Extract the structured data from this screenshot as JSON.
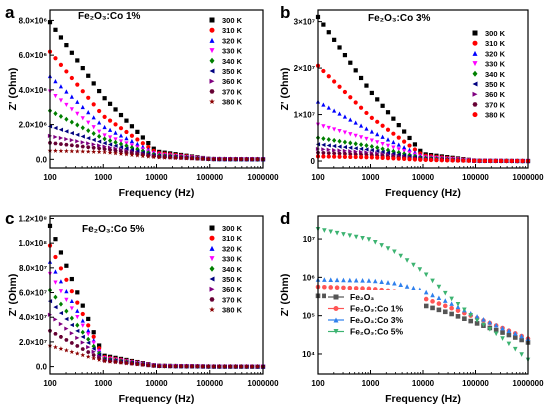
{
  "chart_data": [
    {
      "panel": "a",
      "type": "scatter",
      "title": "Fe₂O₃:Co 1%",
      "xlabel": "Frequency (Hz)",
      "ylabel": "Z' (Ohm)",
      "xscale": "log",
      "xlim": [
        100,
        1000000
      ],
      "ylim": [
        -500000,
        8600000
      ],
      "xticks": [
        100,
        1000,
        10000,
        100000,
        1000000
      ],
      "xtick_labels": [
        "100",
        "1000",
        "10000",
        "100000",
        "1000000"
      ],
      "yticks": [
        0,
        2000000,
        4000000,
        6000000,
        8000000
      ],
      "ytick_labels": [
        "0.0",
        "2.0×10⁶",
        "4.0×10⁶",
        "6.0×10⁶",
        "8.0×10⁶"
      ],
      "legend_position": "top-right",
      "series": [
        {
          "name": "300 K",
          "marker": "square",
          "color": "#000000",
          "x": [
            100,
            1000,
            10000,
            100000,
            1000000
          ],
          "y": [
            7900000,
            3600000,
            450000,
            20000,
            0
          ]
        },
        {
          "name": "310 K",
          "marker": "circle",
          "color": "#ff0000",
          "x": [
            100,
            1000,
            10000,
            100000,
            1000000
          ],
          "y": [
            6200000,
            2500000,
            380000,
            18000,
            0
          ]
        },
        {
          "name": "320 K",
          "marker": "triangle-up",
          "color": "#0000ff",
          "x": [
            100,
            1000,
            10000,
            100000,
            1000000
          ],
          "y": [
            4800000,
            1900000,
            330000,
            16000,
            0
          ]
        },
        {
          "name": "330 K",
          "marker": "triangle-down",
          "color": "#ff00ff",
          "x": [
            100,
            1000,
            10000,
            100000,
            1000000
          ],
          "y": [
            3900000,
            1400000,
            280000,
            15000,
            0
          ]
        },
        {
          "name": "340 K",
          "marker": "diamond",
          "color": "#008000",
          "x": [
            100,
            1000,
            10000,
            100000,
            1000000
          ],
          "y": [
            2800000,
            1200000,
            240000,
            14000,
            0
          ]
        },
        {
          "name": "350 K",
          "marker": "triangle-left",
          "color": "#000080",
          "x": [
            100,
            1000,
            10000,
            100000,
            1000000
          ],
          "y": [
            1900000,
            950000,
            200000,
            13000,
            0
          ]
        },
        {
          "name": "360 K",
          "marker": "triangle-right",
          "color": "#800080",
          "x": [
            100,
            1000,
            10000,
            100000,
            1000000
          ],
          "y": [
            1350000,
            750000,
            170000,
            12000,
            0
          ]
        },
        {
          "name": "370 K",
          "marker": "hexagon",
          "color": "#660033",
          "x": [
            100,
            1000,
            10000,
            100000,
            1000000
          ],
          "y": [
            950000,
            600000,
            150000,
            11000,
            0
          ]
        },
        {
          "name": "380 K",
          "marker": "star",
          "color": "#8b0000",
          "x": [
            100,
            1000,
            10000,
            100000,
            1000000
          ],
          "y": [
            500000,
            420000,
            110000,
            10000,
            0
          ]
        }
      ]
    },
    {
      "panel": "b",
      "type": "scatter",
      "title": "Fe₂O₃:Co 3%",
      "xlabel": "Frequency (Hz)",
      "ylabel": "Z' (Ohm)",
      "xscale": "log",
      "xlim": [
        100,
        1000000
      ],
      "ylim": [
        -1500000,
        32500000
      ],
      "xticks": [
        100,
        1000,
        10000,
        100000,
        1000000
      ],
      "xtick_labels": [
        "100",
        "1000",
        "10000",
        "100000",
        "1000000"
      ],
      "yticks": [
        0,
        10000000,
        20000000,
        30000000
      ],
      "ytick_labels": [
        "0",
        "1×10⁷",
        "2×10⁷",
        "3×10⁷"
      ],
      "legend_position": "top-right",
      "series": [
        {
          "name": "300 K",
          "marker": "square",
          "color": "#000000",
          "x": [
            100,
            1000,
            10000,
            100000,
            1000000
          ],
          "y": [
            31000000,
            15000000,
            1500000,
            80000,
            0
          ]
        },
        {
          "name": "310 K",
          "marker": "circle",
          "color": "#ff0000",
          "x": [
            100,
            1000,
            10000,
            100000,
            1000000
          ],
          "y": [
            20500000,
            9500000,
            1200000,
            70000,
            0
          ]
        },
        {
          "name": "320 K",
          "marker": "triangle-up",
          "color": "#0000ff",
          "x": [
            100,
            1000,
            10000,
            100000,
            1000000
          ],
          "y": [
            12800000,
            6500000,
            1000000,
            60000,
            0
          ]
        },
        {
          "name": "330 K",
          "marker": "triangle-down",
          "color": "#ff00ff",
          "x": [
            100,
            1000,
            10000,
            100000,
            1000000
          ],
          "y": [
            7800000,
            4500000,
            800000,
            50000,
            0
          ]
        },
        {
          "name": "340 K",
          "marker": "diamond",
          "color": "#008000",
          "x": [
            100,
            1000,
            10000,
            100000,
            1000000
          ],
          "y": [
            5000000,
            3200000,
            650000,
            40000,
            0
          ]
        },
        {
          "name": "350 K",
          "marker": "triangle-left",
          "color": "#000080",
          "x": [
            100,
            1000,
            10000,
            100000,
            1000000
          ],
          "y": [
            3600000,
            2400000,
            550000,
            35000,
            0
          ]
        },
        {
          "name": "360 K",
          "marker": "triangle-right",
          "color": "#800080",
          "x": [
            100,
            1000,
            10000,
            100000,
            1000000
          ],
          "y": [
            2600000,
            1800000,
            450000,
            30000,
            0
          ]
        },
        {
          "name": "370 K",
          "marker": "hexagon",
          "color": "#660033",
          "x": [
            100,
            1000,
            10000,
            100000,
            1000000
          ],
          "y": [
            1800000,
            1300000,
            350000,
            25000,
            0
          ]
        },
        {
          "name": "380 K",
          "marker": "circle",
          "color": "#ff0000",
          "x": [
            100,
            1000,
            10000,
            100000,
            1000000
          ],
          "y": [
            1000000,
            800000,
            250000,
            20000,
            0
          ]
        }
      ]
    },
    {
      "panel": "c",
      "type": "scatter",
      "title": "Fe₂O₃:Co 5%",
      "xlabel": "Frequency (Hz)",
      "ylabel": "Z' (Ohm)",
      "xscale": "log",
      "xlim": [
        100,
        1000000
      ],
      "ylim": [
        -6000000,
        122000000
      ],
      "xticks": [
        100,
        1000,
        10000,
        100000,
        1000000
      ],
      "xtick_labels": [
        "100",
        "1000",
        "10000",
        "100000",
        "1000000"
      ],
      "yticks": [
        0,
        20000000,
        40000000,
        60000000,
        80000000,
        100000000,
        120000000
      ],
      "ytick_labels": [
        "0.0",
        "2.0×10⁷",
        "4.0×10⁷",
        "6.0×10⁷",
        "8.0×10⁷",
        "1.0×10⁸",
        "1.2×10⁸"
      ],
      "legend_position": "top-right",
      "series": [
        {
          "name": "300 K",
          "marker": "square",
          "color": "#000000",
          "x": [
            100,
            1000,
            10000,
            100000,
            1000000
          ],
          "y": [
            114000000,
            9000000,
            700000,
            40000,
            0
          ]
        },
        {
          "name": "310 K",
          "marker": "circle",
          "color": "#ff0000",
          "x": [
            100,
            1000,
            10000,
            100000,
            1000000
          ],
          "y": [
            98000000,
            8000000,
            650000,
            35000,
            0
          ]
        },
        {
          "name": "320 K",
          "marker": "triangle-up",
          "color": "#0000ff",
          "x": [
            100,
            1000,
            10000,
            100000,
            1000000
          ],
          "y": [
            85000000,
            7500000,
            600000,
            30000,
            0
          ]
        },
        {
          "name": "330 K",
          "marker": "triangle-down",
          "color": "#ff00ff",
          "x": [
            100,
            1000,
            10000,
            100000,
            1000000
          ],
          "y": [
            75000000,
            7000000,
            550000,
            28000,
            0
          ]
        },
        {
          "name": "340 K",
          "marker": "diamond",
          "color": "#008000",
          "x": [
            100,
            1000,
            10000,
            100000,
            1000000
          ],
          "y": [
            62000000,
            6500000,
            500000,
            25000,
            0
          ]
        },
        {
          "name": "350 K",
          "marker": "triangle-left",
          "color": "#000080",
          "x": [
            100,
            1000,
            10000,
            100000,
            1000000
          ],
          "y": [
            53000000,
            6000000,
            450000,
            22000,
            0
          ]
        },
        {
          "name": "360 K",
          "marker": "triangle-right",
          "color": "#800080",
          "x": [
            100,
            1000,
            10000,
            100000,
            1000000
          ],
          "y": [
            42000000,
            5500000,
            400000,
            20000,
            0
          ]
        },
        {
          "name": "370 K",
          "marker": "hexagon",
          "color": "#660033",
          "x": [
            100,
            1000,
            10000,
            100000,
            1000000
          ],
          "y": [
            29000000,
            5000000,
            350000,
            18000,
            0
          ]
        },
        {
          "name": "380 K",
          "marker": "star",
          "color": "#8b0000",
          "x": [
            100,
            1000,
            10000,
            100000,
            1000000
          ],
          "y": [
            17000000,
            4500000,
            300000,
            15000,
            0
          ]
        }
      ]
    },
    {
      "panel": "d",
      "type": "line",
      "title": "",
      "xlabel": "Frequency (Hz)",
      "ylabel": "Z' (Ohm)",
      "xscale": "log",
      "yscale": "log",
      "xlim": [
        100,
        1000000
      ],
      "ylim": [
        3000,
        40000000
      ],
      "xticks": [
        100,
        1000,
        10000,
        100000,
        1000000
      ],
      "xtick_labels": [
        "100",
        "1000",
        "10000",
        "100000",
        "1000000"
      ],
      "yticks": [
        10000,
        100000,
        1000000,
        10000000
      ],
      "ytick_labels": [
        "10⁴",
        "10⁵",
        "10⁶",
        "10⁷"
      ],
      "legend_position": "bottom-left",
      "series": [
        {
          "name": "Fe₂O₃",
          "marker": "square",
          "color": "#555555",
          "x": [
            100,
            1000,
            3000,
            10000,
            30000,
            100000,
            300000,
            1000000
          ],
          "y": [
            330000,
            320000,
            270000,
            190000,
            120000,
            65000,
            38000,
            20000
          ]
        },
        {
          "name": "Fe₂O₃:Co 1%",
          "marker": "circle",
          "color": "#ff5555",
          "x": [
            100,
            1000,
            3000,
            10000,
            30000,
            100000,
            300000,
            1000000
          ],
          "y": [
            560000,
            500000,
            420000,
            290000,
            170000,
            90000,
            50000,
            25000
          ]
        },
        {
          "name": "Fe₂O₃:Co 3%",
          "marker": "triangle-up",
          "color": "#2f80ed",
          "x": [
            100,
            1000,
            3000,
            10000,
            30000,
            100000,
            300000,
            1000000
          ],
          "y": [
            880000,
            830000,
            700000,
            450000,
            230000,
            100000,
            50000,
            25000
          ]
        },
        {
          "name": "Fe₂O₃:Co 5%",
          "marker": "triangle-down",
          "color": "#3cb371",
          "x": [
            100,
            1000,
            3000,
            10000,
            30000,
            100000,
            300000,
            1000000
          ],
          "y": [
            18000000,
            9500000,
            4500000,
            1400000,
            330000,
            80000,
            28000,
            7000
          ]
        }
      ]
    }
  ]
}
